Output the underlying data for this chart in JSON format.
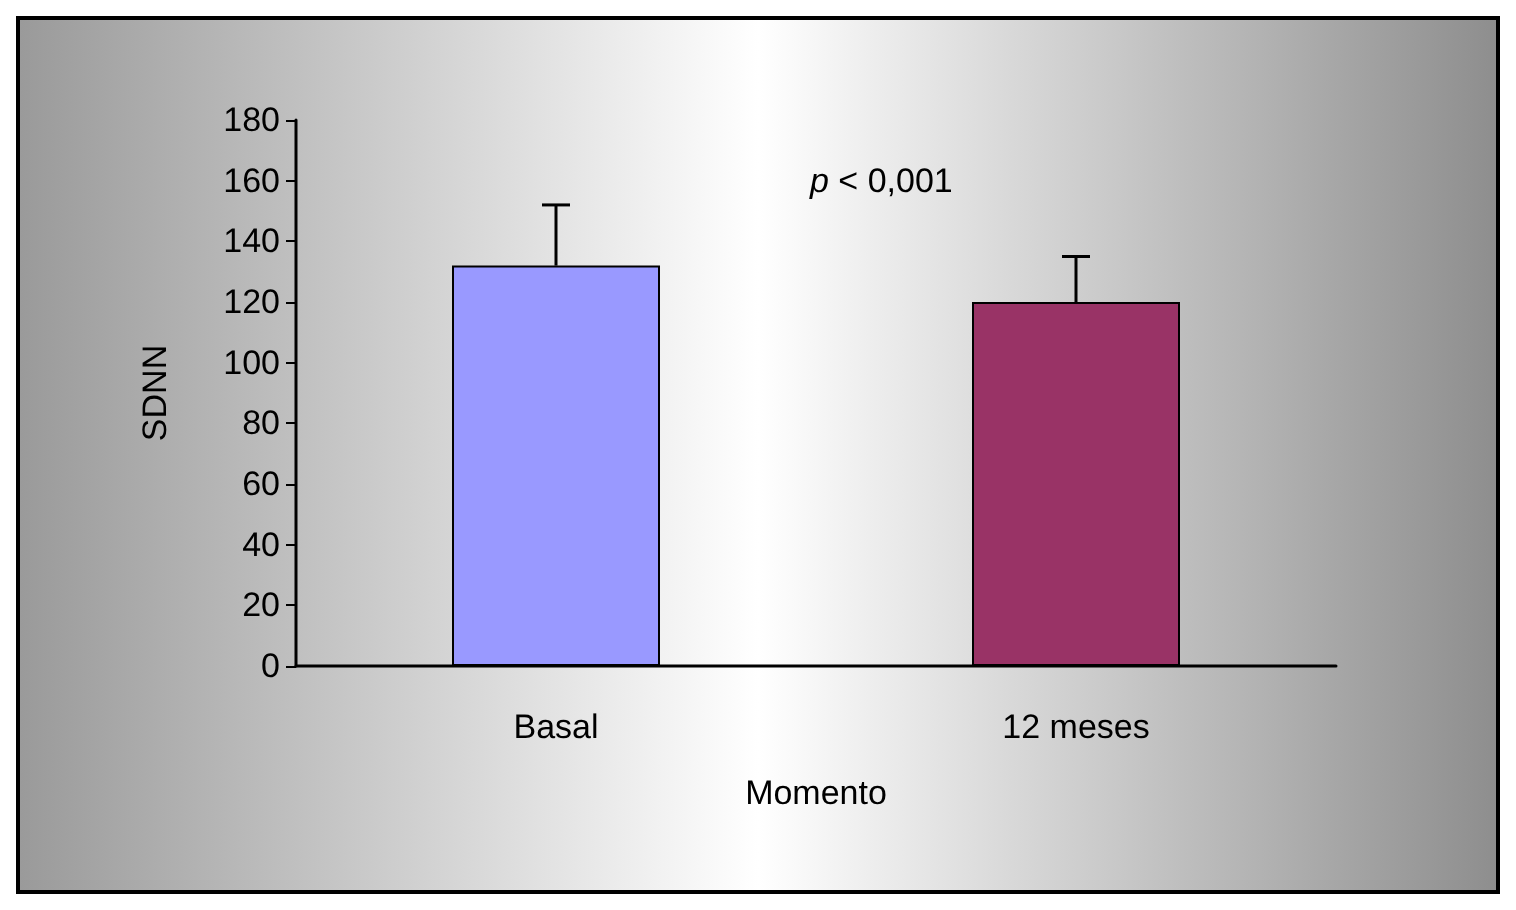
{
  "chart_data": {
    "type": "bar",
    "xlabel": "Momento",
    "ylabel": "SDNN",
    "categories": [
      "Basal",
      "12 meses"
    ],
    "values": [
      132,
      120
    ],
    "colors": [
      "#9999ff",
      "#993366"
    ],
    "errors": [
      [
        132,
        152
      ],
      [
        120,
        135
      ]
    ],
    "ylim": [
      0,
      180
    ],
    "yticks": [
      0,
      20,
      40,
      60,
      80,
      100,
      120,
      140,
      160,
      180
    ],
    "grid": false,
    "annotations": [
      {
        "text": "p < 0,001"
      }
    ]
  }
}
